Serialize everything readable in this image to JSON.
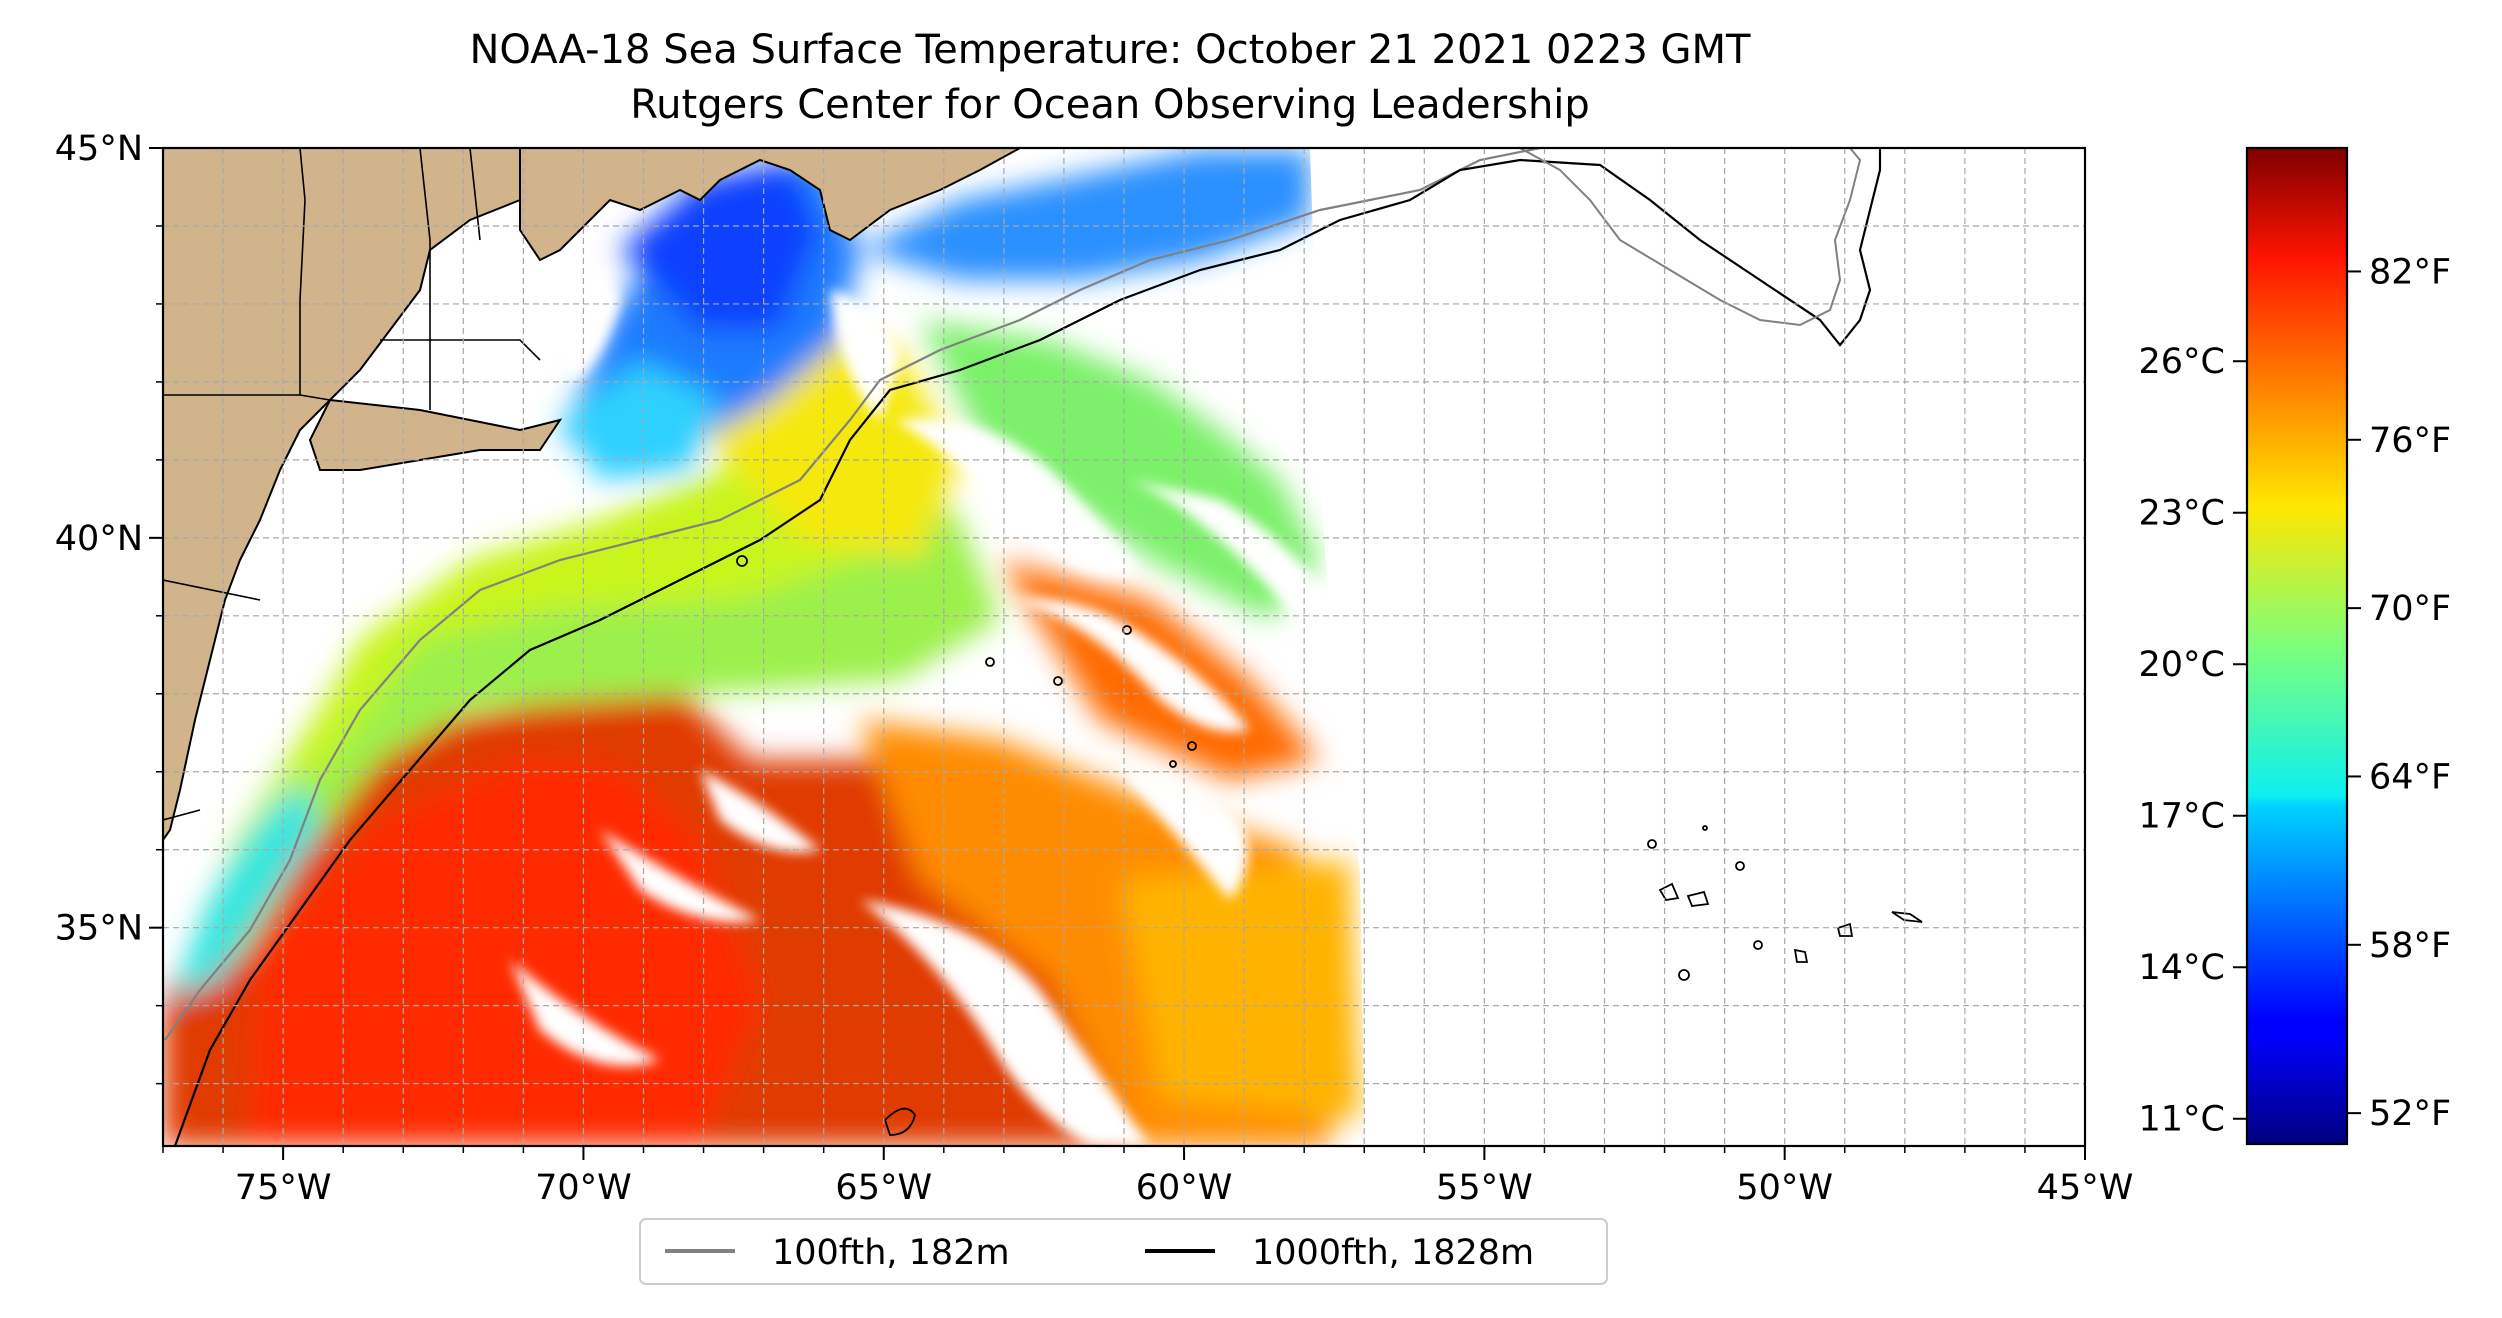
{
  "title": {
    "line1": "NOAA-18 Sea Surface Temperature: October 21 2021 0223 GMT",
    "line2": "Rutgers Center for Ocean Observing Leadership"
  },
  "map": {
    "lon_range": [
      -77,
      -45
    ],
    "lat_range": [
      32.2,
      45
    ],
    "lon_ticks": [
      {
        "lon": -75,
        "label": "75°W"
      },
      {
        "lon": -70,
        "label": "70°W"
      },
      {
        "lon": -65,
        "label": "65°W"
      },
      {
        "lon": -60,
        "label": "60°W"
      },
      {
        "lon": -55,
        "label": "55°W"
      },
      {
        "lon": -50,
        "label": "50°W"
      },
      {
        "lon": -45,
        "label": "45°W"
      }
    ],
    "lat_ticks": [
      {
        "lat": 45,
        "label": "45°N"
      },
      {
        "lat": 40,
        "label": "40°N"
      },
      {
        "lat": 35,
        "label": "35°N"
      }
    ],
    "gridlines": "dashed, 1° spacing",
    "land_color": "#d2b48c",
    "legend": [
      {
        "label": "100fth, 182m",
        "color": "#808080"
      },
      {
        "label": "1000fth, 1828m",
        "color": "#000000"
      }
    ]
  },
  "colorbar": {
    "colormap": "jet",
    "range_f": [
      50.9,
      86.4
    ],
    "fahrenheit_ticks": [
      {
        "value": 52,
        "label": "52°F"
      },
      {
        "value": 58,
        "label": "58°F"
      },
      {
        "value": 64,
        "label": "64°F"
      },
      {
        "value": 70,
        "label": "70°F"
      },
      {
        "value": 76,
        "label": "76°F"
      },
      {
        "value": 82,
        "label": "82°F"
      }
    ],
    "celsius_ticks": [
      {
        "value": 11,
        "label": "11°C"
      },
      {
        "value": 14,
        "label": "14°C"
      },
      {
        "value": 17,
        "label": "17°C"
      },
      {
        "value": 20,
        "label": "20°C"
      },
      {
        "value": 23,
        "label": "23°C"
      },
      {
        "value": 26,
        "label": "26°C"
      }
    ]
  }
}
